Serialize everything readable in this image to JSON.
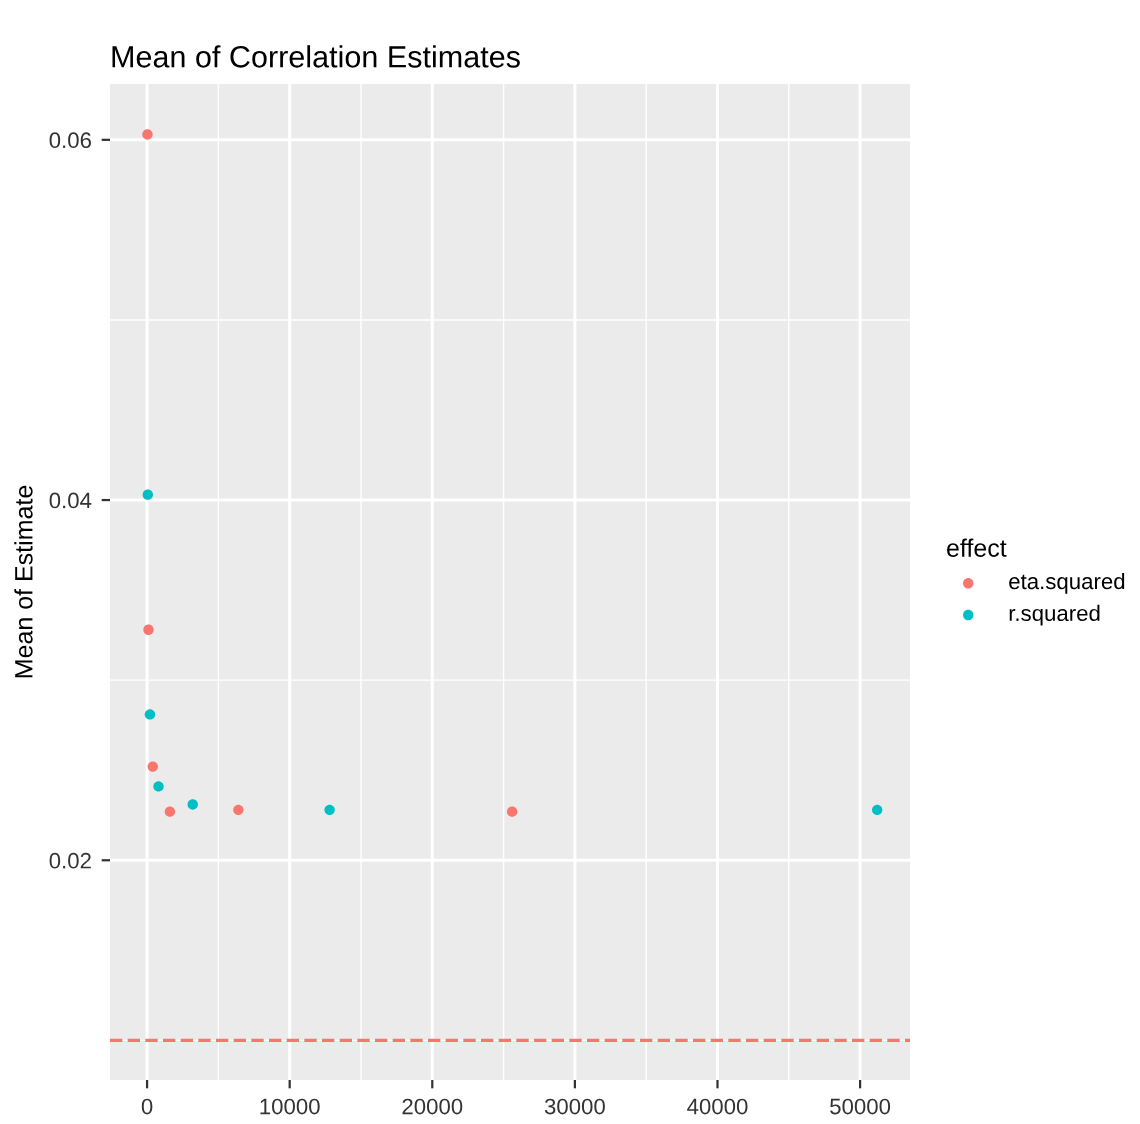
{
  "chart_data": {
    "type": "scatter",
    "title": "Mean of Correlation Estimates",
    "ylabel": "Mean of Estimate",
    "legend_title": "effect",
    "legend": "right",
    "grid": true,
    "marker": "circle",
    "xlim": [
      -2600,
      53500
    ],
    "xticks": [
      0,
      10000,
      20000,
      30000,
      40000,
      50000
    ],
    "ylim": [
      0.0078,
      0.0631
    ],
    "yticks": [
      0.02,
      0.04,
      0.06
    ],
    "series": [
      {
        "name": "eta.squared",
        "color": "#f8766d",
        "x": [
          25,
          100,
          400,
          1600,
          6400,
          25600
        ],
        "values": [
          0.0603,
          0.0328,
          0.0252,
          0.0227,
          0.0228,
          0.0227
        ]
      },
      {
        "name": "r.squared",
        "color": "#00bfc4",
        "x": [
          50,
          200,
          800,
          3200,
          12800,
          51200
        ],
        "values": [
          0.0403,
          0.0281,
          0.0241,
          0.0231,
          0.0228,
          0.0228
        ]
      }
    ],
    "ref_lines": [
      {
        "axis": "y",
        "value": 0.01,
        "color": "#f8766d",
        "line_style": "dashed"
      }
    ]
  }
}
